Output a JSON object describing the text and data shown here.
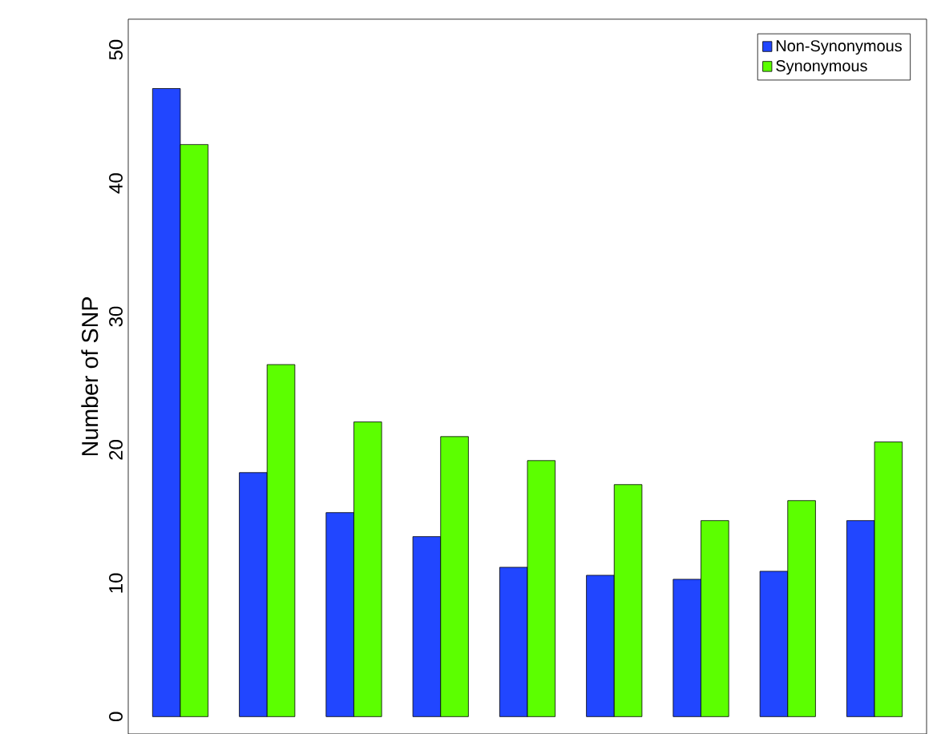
{
  "chart_data": {
    "type": "bar",
    "ylabel": "Number of SNP",
    "categories": [
      null,
      null,
      null,
      null,
      null,
      null,
      null,
      null,
      null
    ],
    "series": [
      {
        "name": "Non-Synonymous",
        "color": "#2146ff",
        "values": [
          47.1,
          18.3,
          15.3,
          13.5,
          11.2,
          10.6,
          10.3,
          10.9,
          14.7
        ]
      },
      {
        "name": "Synonymous",
        "color": "#5cff00",
        "values": [
          42.9,
          26.4,
          22.1,
          21.0,
          19.2,
          17.4,
          14.7,
          16.2,
          20.6
        ]
      }
    ],
    "ylim": [
      -1.3,
      52.3
    ],
    "yticks": [
      0,
      10,
      20,
      30,
      40,
      50
    ],
    "legend": "top right"
  }
}
